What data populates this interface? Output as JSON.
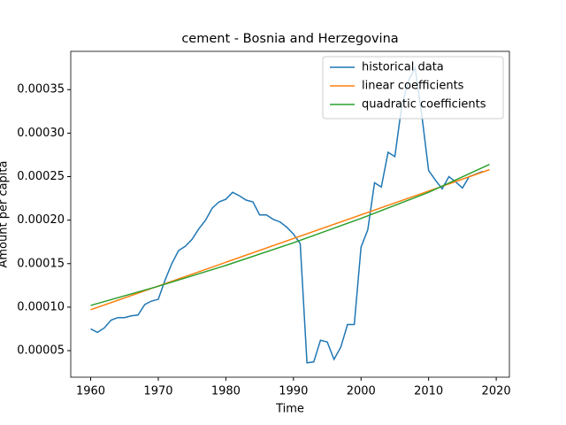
{
  "chart_data": {
    "type": "line",
    "title": "cement - Bosnia and Herzegovina",
    "x_label": "Time",
    "y_label": "Amount per capita",
    "xlim": [
      1957.05,
      2021.95
    ],
    "xticks": [
      1960,
      1970,
      1980,
      1990,
      2000,
      2010,
      2020
    ],
    "ylim": [
      1.95e-05,
      0.000394
    ],
    "yticks": [
      5e-05,
      {
        "value": 0.0001,
        "label": "0.00010"
      },
      {
        "value": 0.00015,
        "label": "0.00015"
      },
      {
        "value": 0.0002,
        "label": "0.00020"
      },
      {
        "value": 0.00025,
        "label": "0.00025"
      },
      {
        "value": 0.0003,
        "label": "0.00030"
      },
      {
        "value": 0.00035,
        "label": "0.00035"
      }
    ],
    "legend": "upper right",
    "series": [
      {
        "name": "historical data",
        "color": "#1f77b4",
        "x": [
          1960,
          1961,
          1962,
          1963,
          1964,
          1965,
          1966,
          1967,
          1968,
          1969,
          1970,
          1971,
          1972,
          1973,
          1974,
          1975,
          1976,
          1977,
          1978,
          1979,
          1980,
          1981,
          1982,
          1983,
          1984,
          1985,
          1986,
          1987,
          1988,
          1989,
          1990,
          1991,
          1992,
          1993,
          1994,
          1995,
          1996,
          1997,
          1998,
          1999,
          2000,
          2001,
          2002,
          2003,
          2004,
          2005,
          2006,
          2007,
          2008,
          2009,
          2010,
          2011,
          2012,
          2013,
          2014,
          2015,
          2016,
          2017,
          2018
        ],
        "values": [
          7.5e-05,
          7.1e-05,
          7.6e-05,
          8.5e-05,
          8.8e-05,
          8.8e-05,
          9e-05,
          9.1e-05,
          0.000103,
          0.000107,
          0.000109,
          0.000131,
          0.00015,
          0.000165,
          0.00017,
          0.000178,
          0.00019,
          0.0002,
          0.000214,
          0.000221,
          0.000224,
          0.000232,
          0.000228,
          0.000223,
          0.000221,
          0.000206,
          0.000206,
          0.000201,
          0.000198,
          0.000192,
          0.000184,
          0.000173,
          3.6e-05,
          3.7e-05,
          6.2e-05,
          6e-05,
          4e-05,
          5.4e-05,
          8e-05,
          8e-05,
          0.000169,
          0.000189,
          0.000243,
          0.000238,
          0.000278,
          0.000273,
          0.00033,
          0.00036,
          0.000375,
          0.00032,
          0.000257,
          0.000246,
          0.000236,
          0.00025,
          0.000244,
          0.000237,
          0.00025,
          0.000253,
          0.000256
        ]
      },
      {
        "name": "linear coefficients",
        "color": "#ff7f0e",
        "x": [
          1960,
          2019
        ],
        "values": [
          9.7e-05,
          0.000258
        ]
      },
      {
        "name": "quadratic coefficients",
        "color": "#2ca02c",
        "x": [
          1960,
          1970,
          1980,
          1990,
          2000,
          2010,
          2019
        ],
        "values": [
          0.000102,
          0.000124,
          0.000148,
          0.000174,
          0.000202,
          0.000232,
          0.000264
        ]
      }
    ]
  }
}
